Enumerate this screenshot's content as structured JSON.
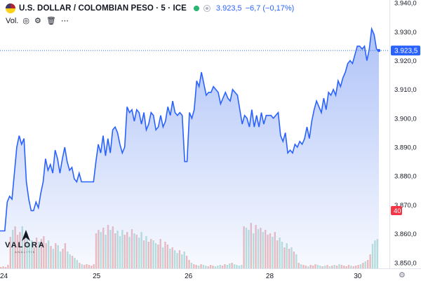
{
  "header": {
    "symbol": "U.S. DOLLAR / COLOMBIAN PESO · 5 · ICE",
    "price": "3.923,5",
    "change": "−6,7 (−0,17%)"
  },
  "volume_label": "Vol.",
  "icons": [
    "eye-icon",
    "gear-icon",
    "trash-icon",
    "more-icon"
  ],
  "logo": {
    "name": "VALORA",
    "subtitle": "ANALITIK"
  },
  "colors": {
    "line": "#2962ff",
    "area_top": "#aabff7",
    "vol_up": "#e8a3a3",
    "vol_down": "#9ed5cc",
    "badge": "#f23645"
  },
  "chart_data": {
    "type": "area",
    "title": "U.S. DOLLAR / COLOMBIAN PESO · 5 · ICE",
    "x_tick_labels": [
      "24",
      "25",
      "26",
      "28",
      "30"
    ],
    "y_ticks": [
      "3.850,0",
      "3.860,0",
      "3.870,0",
      "3.880,0",
      "3.890,0",
      "3.900,0",
      "3.910,0",
      "3.920,0",
      "3.930,0",
      "3.940,0"
    ],
    "ylim": [
      3848,
      3941
    ],
    "last_price_label": "3.923,5",
    "last_price": 3923.5,
    "volume_label": "40",
    "series": [
      {
        "values": [
          3861,
          3861,
          3861,
          3871,
          3873,
          3872,
          3881,
          3890,
          3894,
          3891,
          3893,
          3878,
          3872,
          3868,
          3868,
          3871,
          3869,
          3874,
          3878,
          3886,
          3882,
          3884,
          3881,
          3889,
          3886,
          3881,
          3886,
          3890,
          3885,
          3882,
          3883,
          3879,
          3878,
          3881,
          3878,
          3878,
          3878,
          3878,
          3878,
          3878,
          3885,
          3891,
          3888,
          3894,
          3887,
          3893,
          3888,
          3896,
          3897,
          3895,
          3891,
          3888,
          3890,
          3904,
          3902,
          3903,
          3899,
          3903,
          3902,
          3898,
          3902,
          3896,
          3898,
          3902,
          3901,
          3896,
          3897,
          3901,
          3897,
          3899,
          3904,
          3901,
          3906,
          3902,
          3901,
          3902,
          3901,
          3885,
          3885,
          3902,
          3900,
          3903,
          3913,
          3911,
          3916,
          3912,
          3908,
          3909,
          3909,
          3911,
          3910,
          3909,
          3905,
          3907,
          3909,
          3907,
          3906,
          3910,
          3909,
          3908,
          3903,
          3898,
          3901,
          3900,
          3897,
          3903,
          3897,
          3901,
          3897,
          3902,
          3898,
          3901,
          3901,
          3901,
          3900,
          3901,
          3902,
          3894,
          3892,
          3895,
          3888,
          3889,
          3888,
          3891,
          3890,
          3892,
          3891,
          3893,
          3897,
          3893,
          3899,
          3903,
          3906,
          3904,
          3902,
          3907,
          3903,
          3909,
          3908,
          3910,
          3908,
          3913,
          3911,
          3914,
          3916,
          3919,
          3920,
          3919,
          3922,
          3925,
          3925,
          3924,
          3925,
          3920,
          3924,
          3931,
          3929,
          3924,
          3923.5
        ]
      }
    ],
    "volume": [
      2,
      3,
      2,
      5,
      45,
      55,
      60,
      48,
      52,
      60,
      44,
      50,
      36,
      40,
      30,
      44,
      38,
      42,
      46,
      36,
      40,
      32,
      28,
      36,
      33,
      24,
      28,
      36,
      24,
      20,
      18,
      15,
      12,
      8,
      6,
      5,
      6,
      5,
      4,
      6,
      50,
      55,
      52,
      58,
      48,
      62,
      55,
      60,
      50,
      54,
      46,
      55,
      48,
      52,
      45,
      56,
      50,
      48,
      44,
      52,
      40,
      46,
      38,
      42,
      40,
      36,
      34,
      42,
      30,
      38,
      34,
      28,
      30,
      26,
      22,
      26,
      20,
      24,
      18,
      12,
      8,
      6,
      5,
      4,
      6,
      5,
      4,
      3,
      5,
      4,
      3,
      4,
      5,
      4,
      6,
      5,
      7,
      8,
      6,
      5,
      4,
      5,
      60,
      58,
      55,
      65,
      50,
      62,
      56,
      58,
      52,
      55,
      48,
      50,
      45,
      52,
      40,
      44,
      38,
      30,
      36,
      28,
      30,
      24,
      20,
      8,
      6,
      5,
      4,
      3,
      5,
      4,
      6,
      5,
      4,
      3,
      4,
      5,
      3,
      4,
      5,
      4,
      6,
      5,
      4,
      3,
      5,
      4,
      3,
      4,
      5,
      6,
      8,
      10,
      12,
      20,
      35,
      40,
      42
    ]
  }
}
